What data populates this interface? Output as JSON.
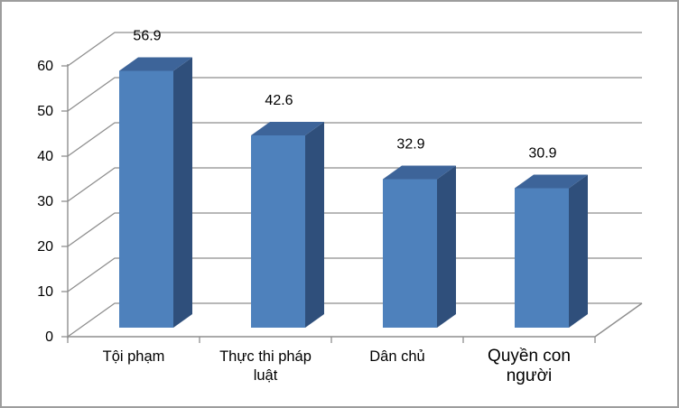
{
  "chart_data": {
    "type": "bar",
    "variant": "3d-column",
    "title": "",
    "xlabel": "",
    "ylabel": "",
    "categories": [
      "Tội phạm",
      "Thực thi pháp luật",
      "Dân chủ",
      "Quyền con người"
    ],
    "values": [
      56.9,
      42.6,
      32.9,
      30.9
    ],
    "data_labels": [
      "56.9",
      "42.6",
      "32.9",
      "30.9"
    ],
    "ylim": [
      0,
      60
    ],
    "y_ticks": [
      "0",
      "10",
      "20",
      "30",
      "40",
      "50",
      "60"
    ],
    "grid": true,
    "legend": false,
    "colors": {
      "bar_front": "#4e81bc",
      "bar_top": "#3d6499",
      "bar_side": "#2f4f7b",
      "gridline": "#8e8e8e",
      "axis": "#8e8e8e",
      "text": "#000000",
      "frame_border": "#9d9d9d",
      "background": "#ffffff"
    }
  }
}
